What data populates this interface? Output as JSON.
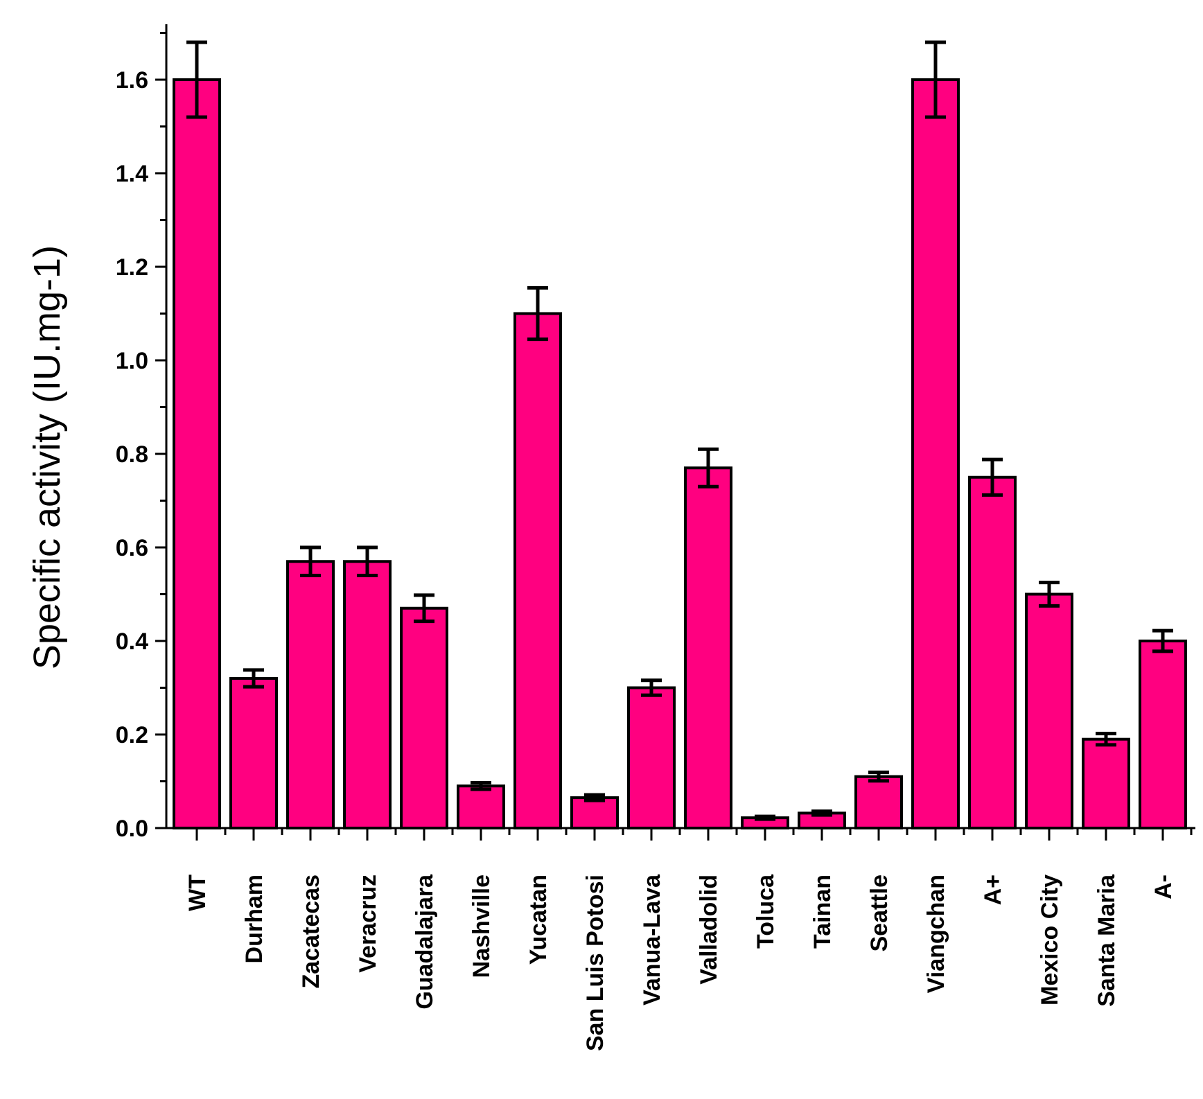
{
  "chart_data": {
    "type": "bar",
    "title": "",
    "xlabel": "",
    "ylabel": "Specific activity (IU.mg-1)",
    "ylim": [
      0,
      1.72
    ],
    "yticks": [
      "0.0",
      "0.2",
      "0.4",
      "0.6",
      "0.8",
      "1.0",
      "1.2",
      "1.4",
      "1.6"
    ],
    "ytick_values": [
      0,
      0.2,
      0.4,
      0.6,
      0.8,
      1.0,
      1.2,
      1.4,
      1.6
    ],
    "bar_color": "#ff0080",
    "categories": [
      "WT",
      "Durham",
      "Zacatecas",
      "Veracruz",
      "Guadalajara",
      "Nashville",
      "Yucatan",
      "San Luis Potosi",
      "Vanua-Lava",
      "Valladolid",
      "Toluca",
      "Tainan",
      "Seattle",
      "Viangchan",
      "A+",
      "Mexico City",
      "Santa Maria",
      "A-"
    ],
    "values": [
      1.6,
      0.32,
      0.57,
      0.57,
      0.47,
      0.09,
      1.1,
      0.065,
      0.3,
      0.77,
      0.022,
      0.032,
      0.11,
      1.6,
      0.75,
      0.5,
      0.19,
      0.4
    ],
    "errors": [
      0.08,
      0.018,
      0.03,
      0.03,
      0.028,
      0.007,
      0.055,
      0.006,
      0.016,
      0.04,
      0.003,
      0.004,
      0.009,
      0.08,
      0.038,
      0.025,
      0.012,
      0.022
    ]
  }
}
